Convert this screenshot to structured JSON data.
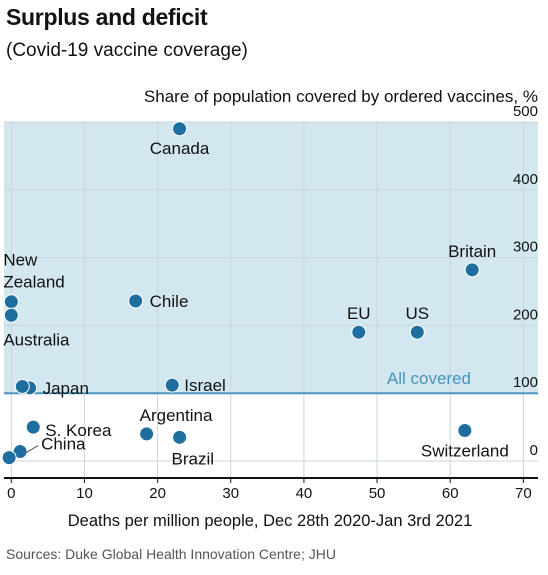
{
  "title": "Surplus and deficit",
  "subtitle": "(Covid-19 vaccine coverage)",
  "source": "Sources: Duke Global Health Innovation Centre; JHU",
  "colors": {
    "point": "#1e6f9f",
    "shade": "#d3e7f1",
    "reference_line": "#4d94bf",
    "reference_label": "#4b93bd",
    "grid": "#cbd5da",
    "axis": "#121212"
  },
  "chart_data": {
    "type": "scatter",
    "title": "Surplus and deficit",
    "xlabel": "Deaths per million people, Dec 28th 2020-Jan 3rd 2021",
    "ylabel": "Share of population covered by ordered vaccines, %",
    "xlim": [
      -1,
      72
    ],
    "ylim": [
      -25,
      500
    ],
    "x_ticks": [
      0,
      10,
      20,
      30,
      40,
      50,
      60,
      70
    ],
    "y_ticks": [
      0,
      100,
      200,
      300,
      400,
      500
    ],
    "grid": true,
    "reference_line": {
      "y": 100,
      "label": "All covered"
    },
    "points": [
      {
        "label": "Canada",
        "x": 23,
        "y": 490
      },
      {
        "label": "Britain",
        "x": 63,
        "y": 282
      },
      {
        "label": "New Zealand",
        "x": 0,
        "y": 235
      },
      {
        "label": "Australia",
        "x": 0,
        "y": 215
      },
      {
        "label": "Chile",
        "x": 17,
        "y": 236
      },
      {
        "label": "EU",
        "x": 47.5,
        "y": 190
      },
      {
        "label": "US",
        "x": 55.5,
        "y": 190
      },
      {
        "label": "Japan",
        "x": 2.5,
        "y": 108
      },
      {
        "label": "",
        "x": 1.5,
        "y": 110
      },
      {
        "label": "Israel",
        "x": 22,
        "y": 112
      },
      {
        "label": "S. Korea",
        "x": 3,
        "y": 50
      },
      {
        "label": "Argentina",
        "x": 18.5,
        "y": 40
      },
      {
        "label": "Brazil",
        "x": 23,
        "y": 35
      },
      {
        "label": "Switzerland",
        "x": 62,
        "y": 45
      },
      {
        "label": "China",
        "x": 1.2,
        "y": 14
      },
      {
        "label": "",
        "x": -0.3,
        "y": 5
      }
    ]
  }
}
